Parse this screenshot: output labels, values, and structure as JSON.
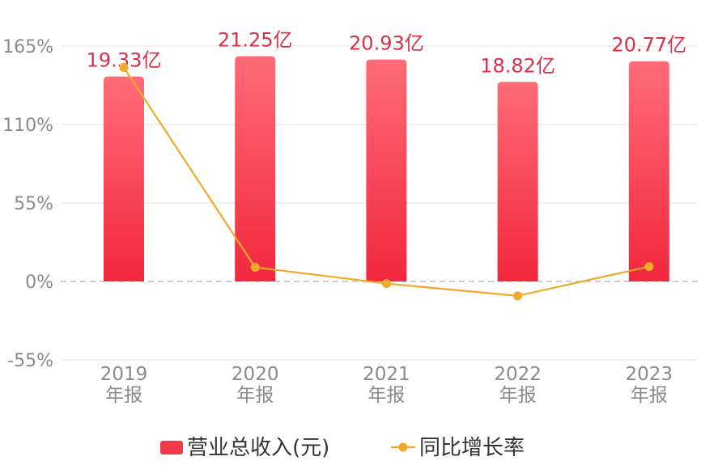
{
  "chart_data": {
    "type": "bar",
    "categories": [
      "2019\n年报",
      "2020\n年报",
      "2021\n年报",
      "2022\n年报",
      "2023\n年报"
    ],
    "series": [
      {
        "name": "营业总收入(元)",
        "type": "bar",
        "axis": "revenue",
        "values": [
          19.33,
          21.25,
          20.93,
          18.82,
          20.77
        ],
        "labels": [
          "19.33亿",
          "21.25亿",
          "20.93亿",
          "18.82亿",
          "20.77亿"
        ],
        "color": "#f23a4d"
      },
      {
        "name": "同比增长率",
        "type": "line",
        "axis": "percent",
        "values": [
          150,
          9.9,
          -1.5,
          -10.1,
          10.4
        ],
        "color": "#f0a92a"
      }
    ],
    "y_ticks": [
      "165%",
      "110%",
      "55%",
      "0%",
      "-55%"
    ],
    "ylim": [
      -55,
      165
    ],
    "revenue_ylim": [
      -7.4,
      22.2
    ],
    "grid": true,
    "legend": "bottom-center"
  }
}
